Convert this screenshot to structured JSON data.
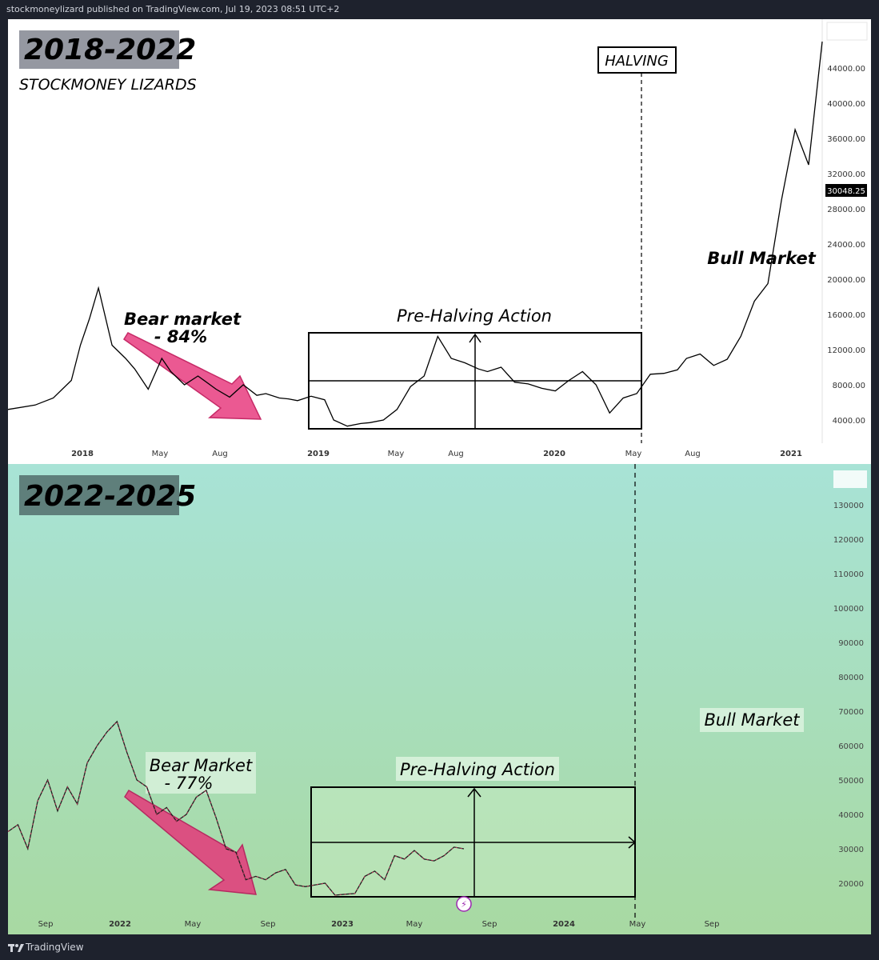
{
  "header": {
    "publish_line": "stockmoneylizard published on TradingView.com, Jul 19, 2023 08:51 UTC+2"
  },
  "footer": {
    "brand": "TradingView"
  },
  "chart_data": [
    {
      "type": "line",
      "title": "2018-2022",
      "subtitle": "STOCKMONEY LIZARDS",
      "x_tick_labels": [
        "2018",
        "May",
        "Aug",
        "2019",
        "May",
        "Aug",
        "2020",
        "May",
        "Aug",
        "2021"
      ],
      "y_tick_labels": [
        "4000.00",
        "8000.00",
        "12000.00",
        "16000.00",
        "20000.00",
        "24000.00",
        "28000.00",
        "32000.00",
        "36000.00",
        "40000.00",
        "44000.00"
      ],
      "ylim": [
        0,
        48000
      ],
      "current_price_label": "30048.25",
      "annotations": {
        "halving": "HALVING",
        "bear": [
          "Bear market",
          "- 84%"
        ],
        "pre_halving": "Pre-Halving Action",
        "bull": "Bull Market"
      },
      "series": [
        {
          "x": [
            0,
            6,
            10,
            14,
            16,
            18,
            20,
            23,
            26,
            28,
            31,
            34,
            36,
            39,
            42,
            46,
            49,
            52,
            55,
            57,
            60,
            62,
            64,
            67,
            70,
            72,
            75,
            78,
            80,
            83,
            86,
            89,
            92,
            95,
            98,
            101,
            104,
            106,
            109,
            112,
            115,
            118,
            121,
            124,
            127,
            130,
            133,
            136,
            139,
            142,
            145,
            148,
            150,
            153,
            156,
            159,
            162,
            165,
            168,
            171,
            174,
            177,
            180
          ],
          "y": [
            5200,
            5700,
            6500,
            8500,
            12500,
            15500,
            19000,
            12500,
            11000,
            9800,
            7500,
            11000,
            9500,
            8000,
            9000,
            7500,
            6600,
            8000,
            6800,
            7000,
            6500,
            6400,
            6200,
            6700,
            6300,
            4000,
            3300,
            3600,
            3700,
            4000,
            5200,
            7800,
            9000,
            13500,
            11000,
            10500,
            9800,
            9500,
            10000,
            8300,
            8100,
            7600,
            7300,
            8500,
            9500,
            8000,
            4800,
            6500,
            7000,
            9200,
            9300,
            9700,
            11000,
            11500,
            10200,
            10900,
            13500,
            17500,
            19500,
            29000,
            37000,
            33000,
            47000
          ]
        }
      ]
    },
    {
      "type": "line",
      "title": "2022-2025",
      "x_tick_labels": [
        "Sep",
        "2022",
        "May",
        "Sep",
        "2023",
        "May",
        "Sep",
        "2024",
        "May",
        "Sep"
      ],
      "y_tick_labels": [
        "20000",
        "30000",
        "40000",
        "50000",
        "60000",
        "70000",
        "80000",
        "90000",
        "100000",
        "110000",
        "120000",
        "130000"
      ],
      "ylim": [
        15000,
        135000
      ],
      "annotations": {
        "bear": [
          "Bear Market",
          "- 77%"
        ],
        "pre_halving": "Pre-Halving Action",
        "bull": "Bull Market"
      },
      "series": [
        {
          "x": [
            0,
            0.5,
            1,
            1.5,
            2,
            2.5,
            3,
            3.5,
            4,
            4.5,
            5,
            5.5,
            6,
            6.5,
            7,
            7.5,
            8,
            8.5,
            9,
            9.5,
            10,
            10.5,
            11,
            11.5,
            12,
            12.5,
            13,
            13.5,
            14,
            14.5,
            15,
            15.5,
            16,
            16.5,
            17,
            17.5,
            18,
            18.5,
            19,
            19.5,
            20,
            20.5,
            21,
            21.5,
            22,
            22.5,
            23
          ],
          "y": [
            35000,
            37000,
            30000,
            44000,
            50000,
            41000,
            48000,
            43000,
            55000,
            60000,
            64000,
            67000,
            58000,
            50000,
            48000,
            40000,
            42000,
            38000,
            40000,
            45000,
            47000,
            39000,
            30000,
            29000,
            21000,
            22000,
            21000,
            23000,
            24000,
            19500,
            19000,
            19500,
            20000,
            16500,
            16800,
            17000,
            22000,
            23500,
            21000,
            28000,
            27000,
            29500,
            27000,
            26500,
            28000,
            30500,
            30000
          ]
        }
      ]
    }
  ]
}
